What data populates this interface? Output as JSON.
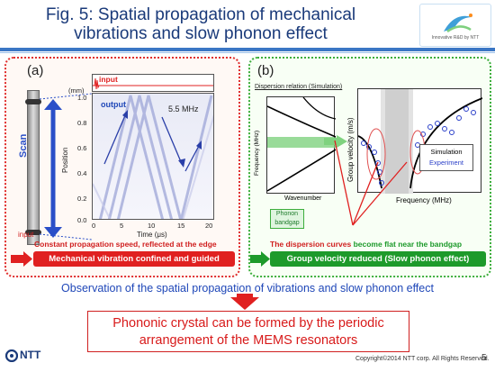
{
  "title": {
    "line1": "Fig. 5: Spatial propagation of mechanical",
    "line2": "vibrations and slow phonon effect"
  },
  "logo": {
    "text": "Innovative R&D by NTT"
  },
  "panel_a": {
    "label": "(a)",
    "input_label": "input",
    "input_unit": "(mm)",
    "output_label": "output",
    "freq_label": "5.5 MHz",
    "scan_label": "Scan",
    "input_side_label": "input",
    "y_axis_label": "Position",
    "x_axis_label": "Time (μs)",
    "y_ticks": [
      "1.0",
      "0.8",
      "0.6",
      "0.4",
      "0.2",
      "0.0"
    ],
    "x_ticks": [
      "0",
      "5",
      "10",
      "15",
      "20"
    ],
    "caption": "Constant propagation speed, reflected at the edge",
    "bar_text": "Mechanical vibration confined and guided"
  },
  "panel_b": {
    "label": "(b)",
    "dispersion_title": "Dispersion relation (Simulation)",
    "dispersion_y_label": "Frequency (MHz)",
    "dispersion_x_label": "Wavenumber",
    "phonon_bandgap": "Phonon bandgap",
    "gv_y_label": "Group velocity (m/s)",
    "gv_x_label": "Frequency (MHz)",
    "legend_sim": "Simulation",
    "legend_exp": "Experiment",
    "caption_red": "The dispersion curves ",
    "caption_green": "become flat near the bandgap",
    "bar_text": "Group velocity  reduced (Slow phonon effect)"
  },
  "observation": "Observation of the spatial propagation of vibrations and slow phonon effect",
  "summary": {
    "line1": "Phononic crystal can be formed by the periodic",
    "line2": "arrangement of the MEMS resonators"
  },
  "footer": {
    "ntt": "NTT",
    "copyright": "Copyright©2014 NTT corp. All Rights Reserved.",
    "page": "5"
  },
  "colors": {
    "title": "#1a3a7a",
    "red": "#e02020",
    "green": "#1d9a2b",
    "blue": "#1f47b8"
  }
}
